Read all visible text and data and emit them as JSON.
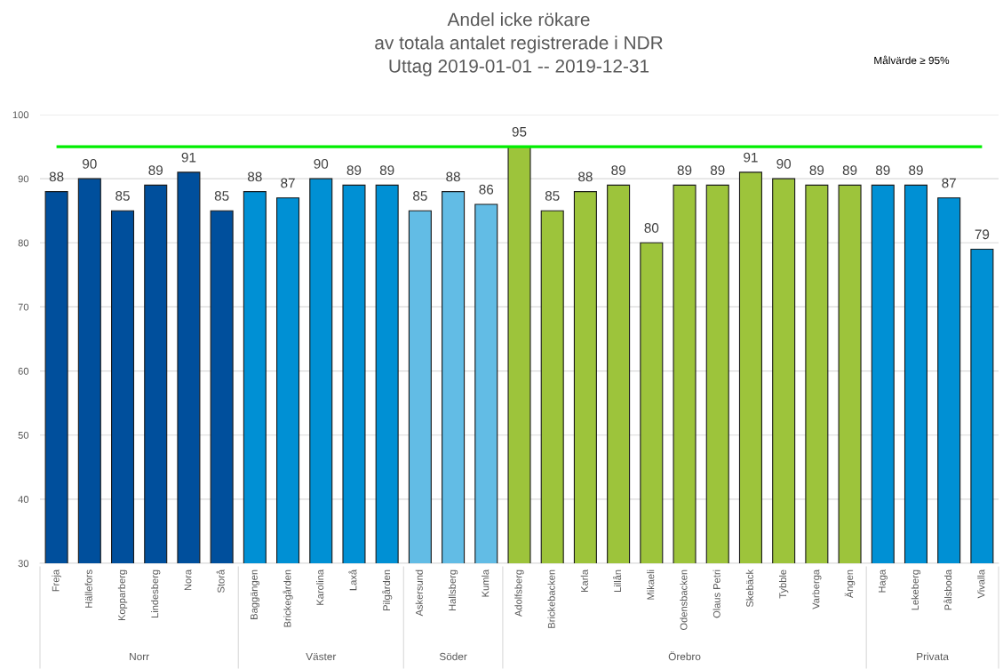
{
  "chart_data": {
    "type": "bar",
    "title": "Andel icke rökare\nav totala antalet registrerade i NDR\nUttag 2019-01-01 -- 2019-12-31",
    "categories": [
      "Freja",
      "Hällefors",
      "Kopparberg",
      "Lindesberg",
      "Nora",
      "Storå",
      "Baggängen",
      "Brickegården",
      "Karolina",
      "Laxå",
      "Pilgården",
      "Askersund",
      "Hallsberg",
      "Kumla",
      "Adolfsberg",
      "Brickebacken",
      "Karla",
      "Lillån",
      "Mikaeli",
      "Odensbacken",
      "Olaus Petri",
      "Skebäck",
      "Tybble",
      "Varberga",
      "Ängen",
      "Haga",
      "Lekeberg",
      "Pålsboda",
      "Vivalla"
    ],
    "series": [
      {
        "name": "Norr",
        "color": "#004f9c",
        "values": [
          88,
          90,
          85,
          89,
          91,
          85,
          null,
          null,
          null,
          null,
          null,
          null,
          null,
          null,
          null,
          null,
          null,
          null,
          null,
          null,
          null,
          null,
          null,
          null,
          null,
          null,
          null,
          null,
          null
        ]
      },
      {
        "name": "Väster",
        "color": "#0090d4",
        "values": [
          null,
          null,
          null,
          null,
          null,
          null,
          88,
          87,
          90,
          89,
          89,
          null,
          null,
          null,
          null,
          null,
          null,
          null,
          null,
          null,
          null,
          null,
          null,
          null,
          null,
          null,
          null,
          null,
          null
        ]
      },
      {
        "name": "Söder",
        "color": "#62bce5",
        "values": [
          null,
          null,
          null,
          null,
          null,
          null,
          null,
          null,
          null,
          null,
          null,
          85,
          88,
          86,
          null,
          null,
          null,
          null,
          null,
          null,
          null,
          null,
          null,
          null,
          null,
          null,
          null,
          null,
          null
        ]
      },
      {
        "name": "Örebro",
        "color": "#9dc43b",
        "values": [
          null,
          null,
          null,
          null,
          null,
          null,
          null,
          null,
          null,
          null,
          null,
          null,
          null,
          null,
          95,
          85,
          88,
          89,
          80,
          89,
          89,
          91,
          90,
          89,
          89,
          null,
          null,
          null,
          null
        ]
      },
      {
        "name": "Privata",
        "color": "#0090d4",
        "values": [
          null,
          null,
          null,
          null,
          null,
          null,
          null,
          null,
          null,
          null,
          null,
          null,
          null,
          null,
          null,
          null,
          null,
          null,
          null,
          null,
          null,
          null,
          null,
          null,
          null,
          89,
          89,
          87,
          79
        ]
      }
    ],
    "ylim": [
      30,
      100
    ],
    "yticks": [
      30,
      40,
      50,
      60,
      70,
      80,
      90,
      100
    ],
    "grid": "y",
    "data_labels": true,
    "ref_lines": [
      {
        "axis": "y",
        "value": 95,
        "color": "#00ee00"
      }
    ],
    "annotations": [
      "Målvärde ≥ 95%"
    ]
  }
}
